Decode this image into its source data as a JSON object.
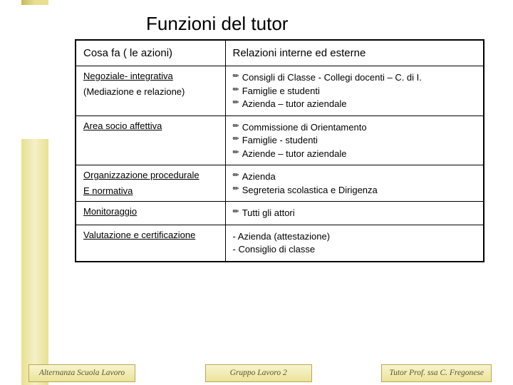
{
  "title": "Funzioni del tutor",
  "colors": {
    "sidebar_gradient": [
      "#e8e090",
      "#f5f0c8",
      "#e8e090"
    ],
    "footer_border": "#b7a94c",
    "footer_bg_top": "#f8f4d0",
    "footer_bg_bottom": "#ece39a",
    "text": "#000000"
  },
  "table": {
    "header": {
      "col1": "Cosa fa ( le azioni)",
      "col2": "Relazioni interne ed esterne"
    },
    "rows": [
      {
        "left_lines": [
          {
            "text": "Negoziale- integrativa",
            "underline": true
          },
          {
            "text": "(Mediazione e relazione)",
            "underline": false
          }
        ],
        "right_bullets": [
          "Consigli di Classe - Collegi docenti – C. di I.",
          "Famiglie e studenti",
          "Azienda – tutor aziendale"
        ]
      },
      {
        "left_lines": [
          {
            "text": "Area socio affettiva",
            "underline": true
          }
        ],
        "right_bullets": [
          "Commissione di Orientamento",
          "Famiglie - studenti",
          "Aziende – tutor aziendale"
        ]
      },
      {
        "left_lines": [
          {
            "text": "Organizzazione procedurale",
            "underline": true
          },
          {
            "text": "E normativa",
            "underline": true
          }
        ],
        "right_bullets": [
          "Azienda",
          "Segreteria scolastica e Dirigenza"
        ]
      },
      {
        "left_lines": [
          {
            "text": "Monitoraggio",
            "underline": true
          }
        ],
        "right_bullets": [
          "Tutti gli attori"
        ]
      },
      {
        "left_lines": [
          {
            "text": "Valutazione e certificazione",
            "underline": true
          }
        ],
        "right_dashes": [
          "Azienda (attestazione)",
          "Consiglio di classe"
        ]
      }
    ]
  },
  "footer": {
    "left": "Alternanza Scuola Lavoro",
    "center": "Gruppo Lavoro 2",
    "right": "Tutor Prof. ssa C. Fregonese"
  },
  "bullet_symbol": "✏"
}
